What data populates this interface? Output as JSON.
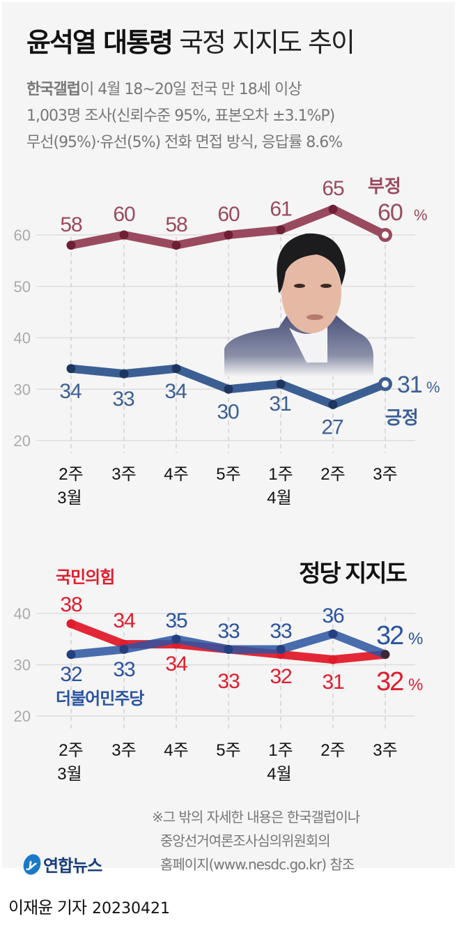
{
  "header": {
    "title_bold": "윤석열 대통령",
    "title_light": "국정 지지도 추이",
    "subtitle_line1_bold": "한국갤럽",
    "subtitle_line1_rest": "이 4월 18~20일 전국 만 18세 이상",
    "subtitle_line2": "1,003명 조사(신뢰수준 95%, 표본오차 ±3.1%P)",
    "subtitle_line3": "무선(95%)·유선(5%) 전화 면접 방식, 응답률 8.6%"
  },
  "colors": {
    "negative": "#9a4a5e",
    "negative_dot": "#6e1f34",
    "positive": "#3c5f93",
    "positive_dot": "#1e3560",
    "ppp": "#e01c2c",
    "dpk": "#2a53a0",
    "grid": "#dddddd",
    "axis_text": "#aaaaaa",
    "background": "#f5f5f5"
  },
  "x_axis": {
    "weeks": [
      "2주",
      "3주",
      "4주",
      "5주",
      "1주",
      "2주",
      "3주"
    ],
    "months": [
      {
        "index": 0,
        "label": "3월"
      },
      {
        "index": 4,
        "label": "4월"
      }
    ]
  },
  "chart1": {
    "y_ticks": [
      "60",
      "50",
      "40",
      "30",
      "20"
    ],
    "negative_label": "부정",
    "negative_last": "60",
    "positive_label": "긍정",
    "positive_last": "31",
    "percent": "%"
  },
  "chart2": {
    "title": "정당 지지도",
    "y_ticks": [
      "40",
      "30",
      "20"
    ],
    "ppp_label": "국민의힘",
    "dpk_label": "더불어민주당",
    "ppp_last": "32",
    "dpk_last": "32",
    "percent": "%"
  },
  "footer": {
    "note_line1": "※그 밖의 자세한 내용은 한국갤럽이나",
    "note_line2": "중앙선거여론조사심의위원회의",
    "note_line3": "홈페이지(www.nesdc.go.kr) 참조",
    "logo_text": "연합뉴스",
    "logo_mark": "y",
    "reporter": "이재윤 기자",
    "date": "20230421"
  },
  "chart_data": [
    {
      "type": "line",
      "title": "윤석열 대통령 국정 지지도 추이",
      "categories": [
        "3월 2주",
        "3월 3주",
        "3월 4주",
        "3월 5주",
        "4월 1주",
        "4월 2주",
        "4월 3주"
      ],
      "series": [
        {
          "name": "부정",
          "values": [
            58,
            60,
            58,
            60,
            61,
            65,
            60
          ]
        },
        {
          "name": "긍정",
          "values": [
            34,
            33,
            34,
            30,
            31,
            27,
            31
          ]
        }
      ],
      "xlabel": "",
      "ylabel": "%",
      "ylim": [
        20,
        60
      ],
      "y_ticks": [
        20,
        30,
        40,
        50,
        60
      ],
      "grid": true,
      "legend_position": "inline-right"
    },
    {
      "type": "line",
      "title": "정당 지지도",
      "categories": [
        "3월 2주",
        "3월 3주",
        "3월 4주",
        "3월 5주",
        "4월 1주",
        "4월 2주",
        "4월 3주"
      ],
      "series": [
        {
          "name": "국민의힘",
          "values": [
            38,
            34,
            34,
            33,
            32,
            31,
            32
          ]
        },
        {
          "name": "더불어민주당",
          "values": [
            32,
            33,
            35,
            33,
            33,
            36,
            32
          ]
        }
      ],
      "xlabel": "",
      "ylabel": "%",
      "ylim": [
        20,
        40
      ],
      "y_ticks": [
        20,
        30,
        40
      ],
      "grid": true,
      "legend_position": "inline-left"
    }
  ]
}
